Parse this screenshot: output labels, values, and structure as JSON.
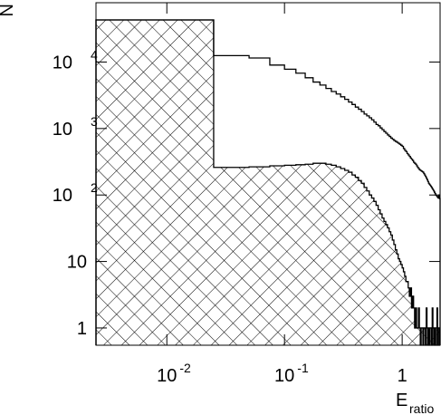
{
  "chart_data": {
    "type": "histogram",
    "x_label": {
      "text": "E",
      "subscript": "ratio"
    },
    "y_label": "N",
    "xlog": true,
    "ylog": true,
    "xlim": [
      0.0025,
      2.1
    ],
    "ylim": [
      0.55,
      78000
    ],
    "xticks": [
      {
        "value": 0.01,
        "label": "10",
        "exponent": "-2"
      },
      {
        "value": 0.1,
        "label": "10",
        "exponent": "-1"
      },
      1
    ],
    "yticks": [
      1,
      10,
      {
        "value": 100,
        "label": "10",
        "exponent": "2"
      },
      {
        "value": 1000,
        "label": "10",
        "exponent": "3"
      },
      {
        "value": 10000,
        "label": "10",
        "exponent": "4"
      }
    ],
    "bins": [
      0,
      0.025,
      0.05,
      0.075,
      0.1,
      0.125,
      0.15,
      0.175,
      0.2,
      0.225,
      0.25,
      0.275,
      0.3,
      0.325,
      0.35,
      0.375,
      0.4,
      0.425,
      0.45,
      0.475,
      0.5,
      0.525,
      0.55,
      0.575,
      0.6,
      0.625,
      0.65,
      0.675,
      0.7,
      0.725,
      0.75,
      0.775,
      0.8,
      0.825,
      0.85,
      0.875,
      0.9,
      0.925,
      0.95,
      0.975,
      1,
      1.025,
      1.05,
      1.075,
      1.1,
      1.125,
      1.15,
      1.175,
      1.2,
      1.225,
      1.25,
      1.275,
      1.3,
      1.325,
      1.35,
      1.375,
      1.4,
      1.425,
      1.45,
      1.475,
      1.5,
      1.525,
      1.55,
      1.575,
      1.6,
      1.625,
      1.65,
      1.675,
      1.7,
      1.725,
      1.75,
      1.775,
      1.8,
      1.825,
      1.85,
      1.875,
      1.9,
      1.925,
      1.95,
      1.975,
      2,
      2.025,
      2.05,
      2.075,
      2.1
    ],
    "series": [
      {
        "color": "#000000",
        "fill": "none",
        "values": [
          43000,
          12500,
          11500,
          9000,
          7800,
          6800,
          5800,
          5000,
          4500,
          4000,
          3600,
          3300,
          3000,
          2750,
          2500,
          2300,
          2100,
          1950,
          1800,
          1650,
          1550,
          1450,
          1350,
          1250,
          1150,
          1100,
          1020,
          960,
          900,
          850,
          800,
          760,
          720,
          690,
          660,
          640,
          620,
          600,
          580,
          560,
          540,
          500,
          470,
          450,
          420,
          400,
          380,
          360,
          345,
          330,
          310,
          300,
          290,
          275,
          260,
          250,
          240,
          235,
          230,
          225,
          220,
          210,
          200,
          190,
          180,
          170,
          160,
          150,
          145,
          140,
          135,
          130,
          125,
          120,
          115,
          110,
          105,
          100,
          98,
          95,
          92,
          90,
          100,
          88
        ]
      },
      {
        "color": "#000000",
        "fill": "crosshatch",
        "values": [
          43000,
          260,
          265,
          275,
          280,
          285,
          290,
          300,
          300,
          290,
          280,
          265,
          250,
          235,
          220,
          200,
          185,
          165,
          150,
          130,
          115,
          100,
          90,
          80,
          70,
          60,
          52,
          45,
          40,
          36,
          32,
          28,
          25,
          21,
          18,
          15,
          13,
          11,
          10,
          9,
          8,
          7,
          6,
          5,
          5,
          4,
          3,
          4,
          2,
          3,
          2,
          1,
          2,
          1,
          1,
          2,
          1,
          0,
          1,
          1,
          0,
          1,
          1,
          0,
          2,
          1,
          0,
          1,
          0,
          1,
          1,
          0,
          2,
          1,
          0,
          1,
          0,
          0,
          1,
          2,
          0,
          1,
          1,
          0
        ]
      }
    ]
  }
}
